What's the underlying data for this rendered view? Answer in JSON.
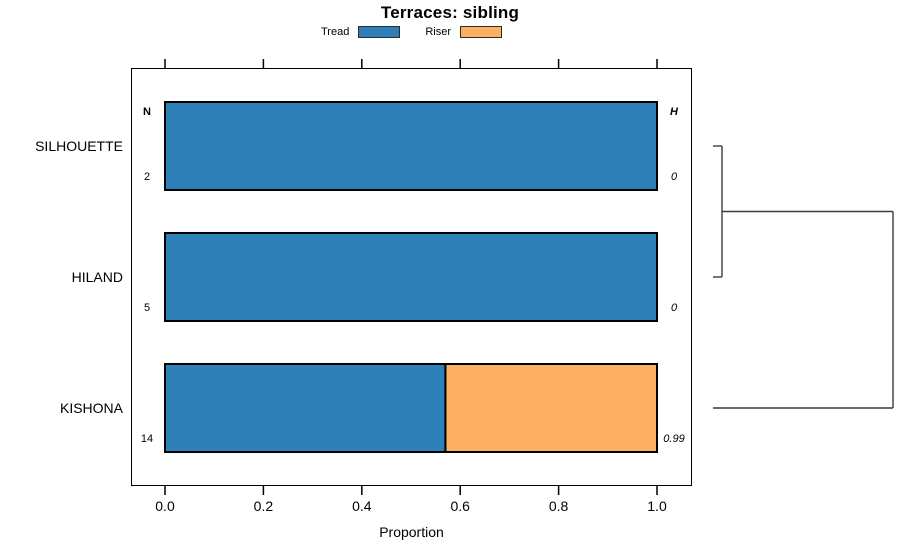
{
  "title": "Terraces: sibling",
  "colors": {
    "tread": "#2E80B8",
    "riser": "#FCAE61",
    "bar_border": "#000000",
    "dendrogram_line": "#3C3C3C",
    "axis": "#000000"
  },
  "legend": {
    "position": "top-center",
    "items": [
      {
        "label": "Tread",
        "color": "#2E80B8"
      },
      {
        "label": "Riser",
        "color": "#FCAE61"
      }
    ]
  },
  "chart_data": {
    "type": "bar",
    "orientation": "horizontal",
    "stacked": true,
    "title": "Terraces: sibling",
    "xlabel": "Proportion",
    "xlim": [
      0,
      1
    ],
    "xticks": [
      0.0,
      0.2,
      0.4,
      0.6,
      0.8,
      1.0
    ],
    "xtick_labels": [
      "0.0",
      "0.2",
      "0.4",
      "0.6",
      "0.8",
      "1.0"
    ],
    "grid": false,
    "categories": [
      "SILHOUETTE",
      "HILAND",
      "KISHONA"
    ],
    "series": [
      {
        "name": "Tread",
        "color": "#2E80B8",
        "values": [
          1.0,
          1.0,
          0.57
        ]
      },
      {
        "name": "Riser",
        "color": "#FCAE61",
        "values": [
          0.0,
          0.0,
          0.43
        ]
      }
    ],
    "n_column": {
      "header": "N",
      "values": [
        "2",
        "5",
        "14"
      ]
    },
    "h_column": {
      "header": "H",
      "values": [
        "0",
        "0",
        "0.99"
      ]
    },
    "dendrogram": {
      "side": "right",
      "max_height": 0.99,
      "merges": [
        {
          "joins": [
            "SILHOUETTE",
            "HILAND"
          ],
          "height": 0
        },
        {
          "joins": [
            "SILHOUETTE+HILAND",
            "KISHONA"
          ],
          "height": 0.99
        }
      ]
    }
  }
}
